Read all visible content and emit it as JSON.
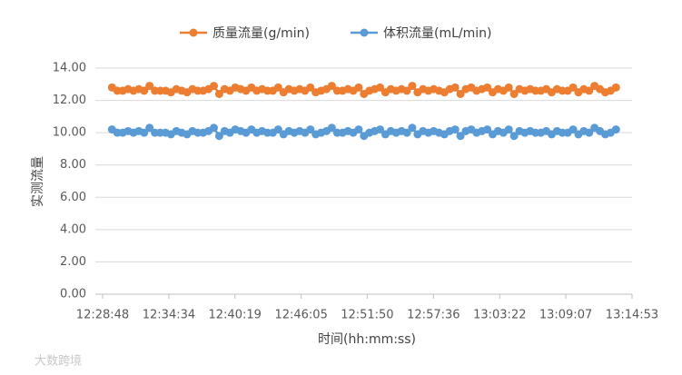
{
  "chart_data": {
    "type": "line",
    "y_label": "实测流量",
    "x_label": "时间(hh:mm:ss)",
    "watermark": "大数跨境",
    "x": [
      44977,
      45005,
      45033,
      45061,
      45089,
      45117,
      45145,
      45173,
      45201,
      45229,
      45257,
      45285,
      45313,
      45341,
      45369,
      45397,
      45425,
      45453,
      45481,
      45509,
      45537,
      45565,
      45593,
      45621,
      45649,
      45677,
      45705,
      45733,
      45761,
      45789,
      45817,
      45845,
      45873,
      45901,
      45929,
      45957,
      45985,
      46013,
      46041,
      46069,
      46097,
      46125,
      46153,
      46181,
      46209,
      46237,
      46265,
      46293,
      46321,
      46349,
      46377,
      46405,
      46433,
      46461,
      46489,
      46517,
      46545,
      46573,
      46601,
      46629,
      46657,
      46685,
      46713,
      46741,
      46769,
      46797,
      46825,
      46853,
      46881,
      46909,
      46937,
      46965,
      46993,
      47021,
      47049,
      47077,
      47105,
      47133,
      47161,
      47189,
      47217,
      47245,
      47273,
      47301,
      47329,
      47357,
      47385,
      47413,
      47441,
      47469,
      47497,
      47525,
      47553,
      47581,
      47609
    ],
    "series": [
      {
        "name": "质量流量(g/min)",
        "color": "#ed7d31",
        "values": [
          12.8,
          12.6,
          12.6,
          12.7,
          12.6,
          12.7,
          12.6,
          12.9,
          12.6,
          12.6,
          12.6,
          12.5,
          12.7,
          12.6,
          12.5,
          12.7,
          12.6,
          12.6,
          12.7,
          12.9,
          12.4,
          12.7,
          12.6,
          12.8,
          12.7,
          12.6,
          12.8,
          12.6,
          12.7,
          12.6,
          12.6,
          12.8,
          12.5,
          12.7,
          12.6,
          12.7,
          12.6,
          12.8,
          12.5,
          12.6,
          12.7,
          12.9,
          12.6,
          12.6,
          12.7,
          12.6,
          12.8,
          12.4,
          12.6,
          12.7,
          12.8,
          12.5,
          12.7,
          12.6,
          12.7,
          12.6,
          12.9,
          12.5,
          12.7,
          12.6,
          12.7,
          12.6,
          12.5,
          12.7,
          12.8,
          12.4,
          12.7,
          12.8,
          12.6,
          12.7,
          12.8,
          12.5,
          12.7,
          12.6,
          12.8,
          12.4,
          12.7,
          12.6,
          12.7,
          12.6,
          12.6,
          12.7,
          12.5,
          12.7,
          12.6,
          12.6,
          12.8,
          12.5,
          12.7,
          12.6,
          12.9,
          12.7,
          12.5,
          12.6,
          12.8
        ]
      },
      {
        "name": "体积流量(mL/min)",
        "color": "#5b9bd5",
        "values": [
          10.2,
          10.0,
          10.0,
          10.1,
          10.0,
          10.1,
          10.0,
          10.3,
          10.0,
          10.0,
          10.0,
          9.9,
          10.1,
          10.0,
          9.9,
          10.1,
          10.0,
          10.0,
          10.1,
          10.3,
          9.8,
          10.1,
          10.0,
          10.2,
          10.1,
          10.0,
          10.2,
          10.0,
          10.1,
          10.0,
          10.0,
          10.2,
          9.9,
          10.1,
          10.0,
          10.1,
          10.0,
          10.2,
          9.9,
          10.0,
          10.1,
          10.3,
          10.0,
          10.0,
          10.1,
          10.0,
          10.2,
          9.8,
          10.0,
          10.1,
          10.2,
          9.9,
          10.1,
          10.0,
          10.1,
          10.0,
          10.3,
          9.9,
          10.1,
          10.0,
          10.1,
          10.0,
          9.9,
          10.1,
          10.2,
          9.8,
          10.1,
          10.2,
          10.0,
          10.1,
          10.2,
          9.9,
          10.1,
          10.0,
          10.2,
          9.8,
          10.1,
          10.0,
          10.1,
          10.0,
          10.0,
          10.1,
          9.9,
          10.1,
          10.0,
          10.0,
          10.2,
          9.9,
          10.1,
          10.0,
          10.3,
          10.1,
          9.9,
          10.0,
          10.2
        ]
      }
    ],
    "xlim": [
      44928,
      47693
    ],
    "xticks": [
      {
        "value": 44928,
        "label": "12:28:48"
      },
      {
        "value": 45274,
        "label": "12:34:34"
      },
      {
        "value": 45619,
        "label": "12:40:19"
      },
      {
        "value": 45965,
        "label": "12:46:05"
      },
      {
        "value": 46310,
        "label": "12:51:50"
      },
      {
        "value": 46656,
        "label": "12:57:36"
      },
      {
        "value": 47002,
        "label": "13:03:22"
      },
      {
        "value": 47347,
        "label": "13:09:07"
      },
      {
        "value": 47693,
        "label": "13:14:53"
      }
    ],
    "ylim": [
      0,
      14
    ],
    "yticks": [
      {
        "value": 0,
        "label": "0.00"
      },
      {
        "value": 2,
        "label": "2.00"
      },
      {
        "value": 4,
        "label": "4.00"
      },
      {
        "value": 6,
        "label": "6.00"
      },
      {
        "value": 8,
        "label": "8.00"
      },
      {
        "value": 10,
        "label": "10.00"
      },
      {
        "value": 12,
        "label": "12.00"
      },
      {
        "value": 14,
        "label": "14.00"
      }
    ],
    "grid": true,
    "legend": "top"
  }
}
